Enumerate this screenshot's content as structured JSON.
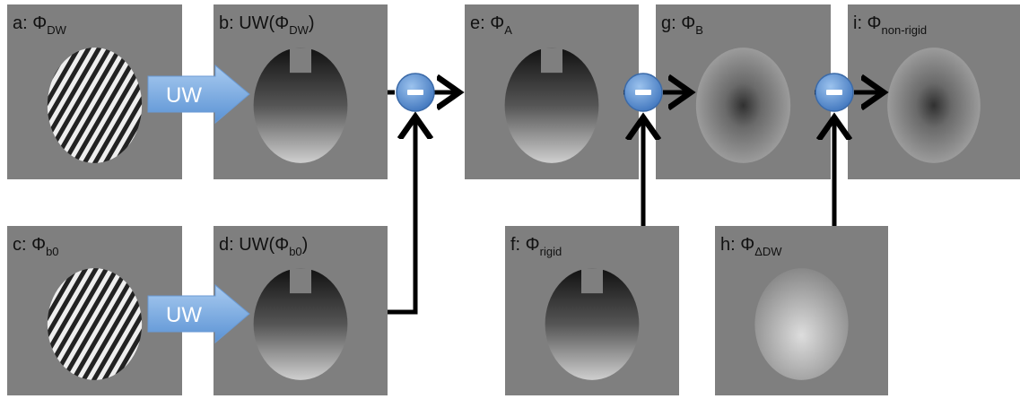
{
  "panels": [
    {
      "label": "a: Φ",
      "sub": "DW"
    },
    {
      "label": "b: UW(Φ",
      "sub": "DW",
      "suffix": ")"
    },
    {
      "label": "c: Φ",
      "sub": "b0"
    },
    {
      "label": "d: UW(Φ",
      "sub": "b0",
      "suffix": ")"
    },
    {
      "label": "e: Φ",
      "sub": "A"
    },
    {
      "label": "f: Φ",
      "sub": "rigid"
    },
    {
      "label": "g: Φ",
      "sub": "B"
    },
    {
      "label": "h: Φ",
      "sub": "ΔDW"
    },
    {
      "label": "i: Φ",
      "sub": "non-rigid"
    }
  ],
  "arrows": [
    {
      "label": "UW"
    },
    {
      "label": "UW"
    }
  ]
}
